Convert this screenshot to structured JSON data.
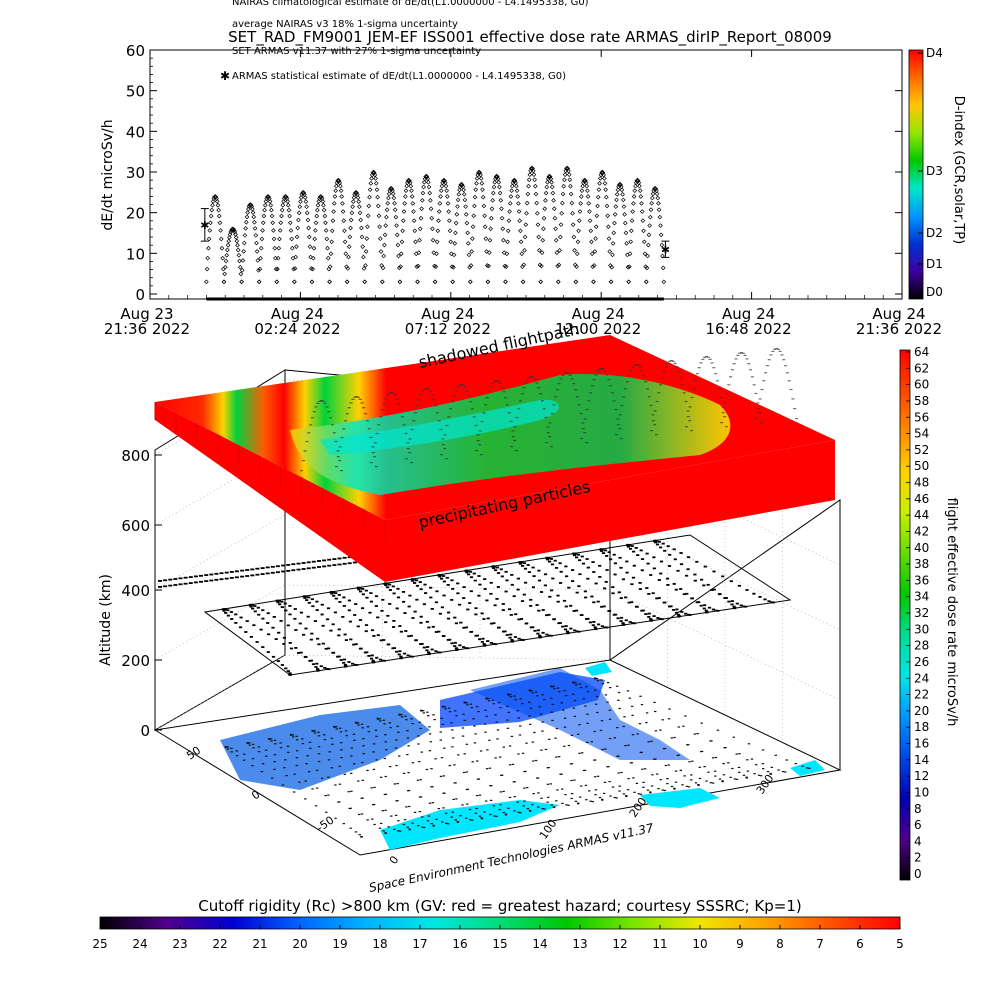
{
  "header": {
    "legend_line_1": "NAIRAS climatological estimate of dE/dt(L1.0000000 - L4.1495338, G0)",
    "legend_line_2": "average NAIRAS v3 18% 1-sigma uncertainty",
    "title": "SET_RAD_FM9001  JEM-EF ISS001 effective dose rate ARMAS_dirIP_Report_08009",
    "legend_line_3": "SET ARMAS v11.37 with 27% 1-sigma uncertainty",
    "legend_line_4": "ARMAS statistical estimate of dE/dt(L1.0000000 - L4.1495338, G0)"
  },
  "chart_data": [
    {
      "type": "scatter",
      "ylabel": "dE/dt microSv/h",
      "ylim": [
        0,
        60
      ],
      "yticks": [
        "0",
        "10",
        "20",
        "30",
        "40",
        "50",
        "60"
      ],
      "xticks": [
        {
          "line1": "Aug 23",
          "line2": "21:36 2022"
        },
        {
          "line1": "Aug 24",
          "line2": "02:24 2022"
        },
        {
          "line1": "Aug 24",
          "line2": "07:12 2022"
        },
        {
          "line1": "Aug 24",
          "line2": "12:00 2022"
        },
        {
          "line1": "Aug 24",
          "line2": "16:48 2022"
        },
        {
          "line1": "Aug 24",
          "line2": "21:36 2022"
        }
      ],
      "xlim_hours": [
        0,
        24
      ],
      "data_range_hours": [
        1.8,
        16.4
      ],
      "orbit_peaks_microSv_h": [
        24,
        16,
        22,
        24,
        24,
        25,
        24,
        28,
        25,
        30,
        26,
        28,
        29,
        28,
        27,
        30,
        29,
        28,
        31,
        29,
        31,
        28,
        30,
        27,
        28,
        26
      ],
      "orbit_trough_microSv_h": 3,
      "errorbar_start": {
        "value": 17,
        "low": 13,
        "high": 21
      },
      "errorbar_end": {
        "value": 11,
        "low": 9,
        "high": 13
      },
      "colorbar": {
        "label": "D-index (GCR,solar,TP)",
        "ticks": [
          "D4",
          "D3",
          "D2",
          "D1",
          "D0"
        ],
        "colors": [
          "#ff0000",
          "#ff6a00",
          "#ffc800",
          "#96e600",
          "#00c800",
          "#00e6c8",
          "#0096ff",
          "#0032d2",
          "#3c00a0",
          "#000000"
        ]
      }
    },
    {
      "type": "surface3d",
      "zlabel": "Altitude (km)",
      "zticks": [
        "0",
        "200",
        "400",
        "600",
        "800"
      ],
      "lat_ticks": [
        "50",
        "0",
        "-50"
      ],
      "lon_ticks": [
        "0",
        "100",
        "200",
        "300"
      ],
      "annotations": {
        "top": "shadowed flightpath",
        "middle": "precipitating particles",
        "credit": "Space Environment Technologies ARMAS v11.37"
      },
      "colorbar": {
        "label": "flight effective dose rate microSv/h",
        "ticks": [
          "64",
          "62",
          "60",
          "58",
          "56",
          "54",
          "52",
          "50",
          "48",
          "46",
          "44",
          "42",
          "40",
          "38",
          "36",
          "34",
          "32",
          "30",
          "28",
          "26",
          "24",
          "22",
          "20",
          "18",
          "16",
          "14",
          "12",
          "10",
          "8",
          "6",
          "4",
          "2",
          "0"
        ],
        "colors": [
          "#ff0000",
          "#ff4600",
          "#ff8c00",
          "#ffd200",
          "#c8f000",
          "#64dc00",
          "#00c800",
          "#00dc96",
          "#00e6e6",
          "#0096ff",
          "#0046e6",
          "#0000b4",
          "#50008c",
          "#000000"
        ]
      }
    },
    {
      "type": "colorbar",
      "title": "Cutoff rigidity (Rc) >800 km (GV: red = greatest hazard; courtesy SSSRC; Kp=1)",
      "ticks": [
        "25",
        "24",
        "23",
        "22",
        "21",
        "20",
        "19",
        "18",
        "17",
        "16",
        "15",
        "14",
        "13",
        "12",
        "11",
        "10",
        "9",
        "8",
        "7",
        "6",
        "5"
      ],
      "colors": [
        "#000000",
        "#50008c",
        "#0000d2",
        "#0064ff",
        "#00b4ff",
        "#00e6e6",
        "#00dc78",
        "#00c800",
        "#78e600",
        "#f0e600",
        "#ffa000",
        "#ff5000",
        "#ff0000"
      ]
    }
  ]
}
